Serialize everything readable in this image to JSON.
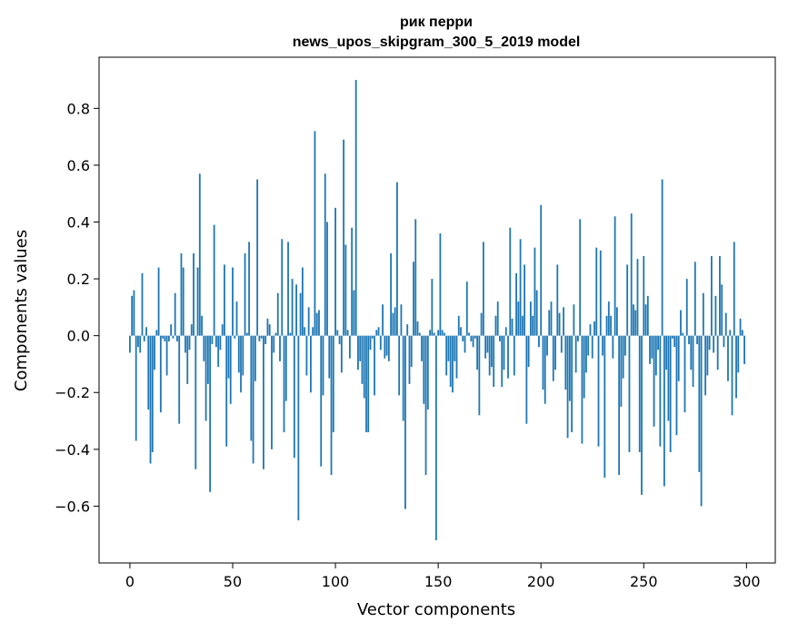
{
  "chart_data": {
    "type": "bar",
    "title_line1": "рик перри",
    "title_line2": "news_upos_skipgram_300_5_2019 model",
    "xlabel": "Vector components",
    "ylabel": "Components values",
    "xlim": [
      -15,
      314
    ],
    "ylim": [
      -0.8,
      0.98
    ],
    "xticks": [
      0,
      50,
      100,
      150,
      200,
      250,
      300
    ],
    "xtick_labels": [
      "0",
      "50",
      "100",
      "150",
      "200",
      "250",
      "300"
    ],
    "yticks": [
      -0.6,
      -0.4,
      -0.2,
      0.0,
      0.2,
      0.4,
      0.6,
      0.8
    ],
    "ytick_labels": [
      "−0.6",
      "−0.4",
      "−0.2",
      "0.0",
      "0.2",
      "0.4",
      "0.6",
      "0.8"
    ],
    "grid": false,
    "bar_color": "#1f77b4",
    "values": [
      -0.06,
      0.14,
      0.16,
      -0.37,
      -0.04,
      -0.06,
      0.22,
      -0.02,
      0.03,
      -0.26,
      -0.45,
      -0.41,
      -0.12,
      0.02,
      0.24,
      -0.27,
      -0.01,
      -0.02,
      -0.14,
      -0.02,
      0.04,
      -0.01,
      0.15,
      -0.02,
      -0.31,
      0.29,
      0.24,
      -0.06,
      -0.17,
      -0.05,
      0.04,
      0.29,
      -0.47,
      0.24,
      0.57,
      0.07,
      -0.09,
      -0.3,
      -0.17,
      -0.55,
      -0.03,
      0.39,
      -0.04,
      -0.11,
      -0.05,
      0.04,
      0.25,
      -0.39,
      -0.15,
      -0.24,
      0.24,
      -0.01,
      0.12,
      -0.13,
      -0.2,
      -0.14,
      0.29,
      0.01,
      0.33,
      -0.37,
      -0.45,
      -0.16,
      0.55,
      -0.02,
      -0.01,
      -0.47,
      -0.03,
      0.06,
      0.04,
      -0.4,
      -0.06,
      0.01,
      0.15,
      -0.09,
      0.34,
      -0.34,
      -0.23,
      0.33,
      0.01,
      0.2,
      -0.43,
      0.18,
      -0.65,
      0.15,
      0.24,
      0.03,
      -0.14,
      0.1,
      -0.2,
      0.03,
      0.72,
      0.08,
      0.09,
      -0.46,
      -0.21,
      0.57,
      0.4,
      -0.15,
      -0.49,
      -0.34,
      0.45,
      0.02,
      -0.03,
      -0.13,
      0.69,
      0.32,
      0.02,
      -0.08,
      0.38,
      0.16,
      0.9,
      -0.12,
      -0.09,
      -0.17,
      -0.22,
      -0.34,
      -0.34,
      -0.05,
      -0.01,
      -0.21,
      0.02,
      0.03,
      -0.05,
      0.11,
      -0.08,
      -0.07,
      -0.09,
      0.29,
      0.08,
      0.1,
      0.54,
      -0.21,
      0.11,
      -0.3,
      -0.61,
      0.04,
      -0.17,
      -0.11,
      0.26,
      0.41,
      0.05,
      0.01,
      -0.09,
      -0.24,
      -0.49,
      -0.26,
      0.02,
      0.2,
      0.01,
      -0.72,
      0.02,
      0.36,
      0.02,
      0.01,
      -0.14,
      -0.09,
      -0.18,
      -0.2,
      -0.09,
      -0.15,
      0.07,
      0.03,
      -0.02,
      -0.06,
      0.19,
      0.01,
      -0.02,
      -0.04,
      -0.01,
      -0.12,
      -0.28,
      0.08,
      0.33,
      -0.08,
      -0.06,
      -0.14,
      -0.11,
      -0.18,
      0.07,
      0.12,
      -0.02,
      -0.18,
      -0.12,
      0.03,
      -0.15,
      0.38,
      0.06,
      -0.14,
      0.22,
      0.12,
      0.34,
      0.07,
      0.25,
      -0.31,
      -0.11,
      0.12,
      0.07,
      0.31,
      0.16,
      -0.04,
      0.46,
      -0.19,
      -0.24,
      -0.07,
      0.09,
      0.12,
      -0.16,
      -0.12,
      0.25,
      0.08,
      -0.06,
      0.1,
      -0.19,
      -0.36,
      -0.23,
      -0.34,
      0.11,
      -0.13,
      -0.02,
      0.41,
      -0.38,
      -0.22,
      -0.13,
      -0.07,
      0.04,
      -0.08,
      0.05,
      0.31,
      -0.39,
      0.3,
      -0.07,
      -0.5,
      0.07,
      0.12,
      0.07,
      -0.08,
      0.42,
      0.1,
      -0.49,
      -0.25,
      -0.15,
      -0.07,
      0.25,
      -0.41,
      0.43,
      0.11,
      0.09,
      0.27,
      -0.41,
      -0.56,
      0.28,
      0.11,
      0.14,
      -0.1,
      -0.08,
      -0.32,
      -0.14,
      -0.05,
      -0.39,
      0.55,
      -0.53,
      -0.12,
      -0.3,
      -0.41,
      -0.01,
      -0.04,
      -0.35,
      -0.16,
      0.09,
      0.01,
      -0.27,
      0.2,
      -0.03,
      -0.12,
      -0.18,
      0.26,
      -0.03,
      -0.48,
      -0.6,
      0.15,
      -0.21,
      -0.14,
      -0.05,
      0.28,
      -0.06,
      0.14,
      -0.12,
      0.28,
      0.18,
      -0.04,
      0.08,
      -0.16,
      0.02,
      -0.28,
      0.33,
      -0.22,
      -0.13,
      0.06,
      0.02,
      -0.1
    ]
  }
}
